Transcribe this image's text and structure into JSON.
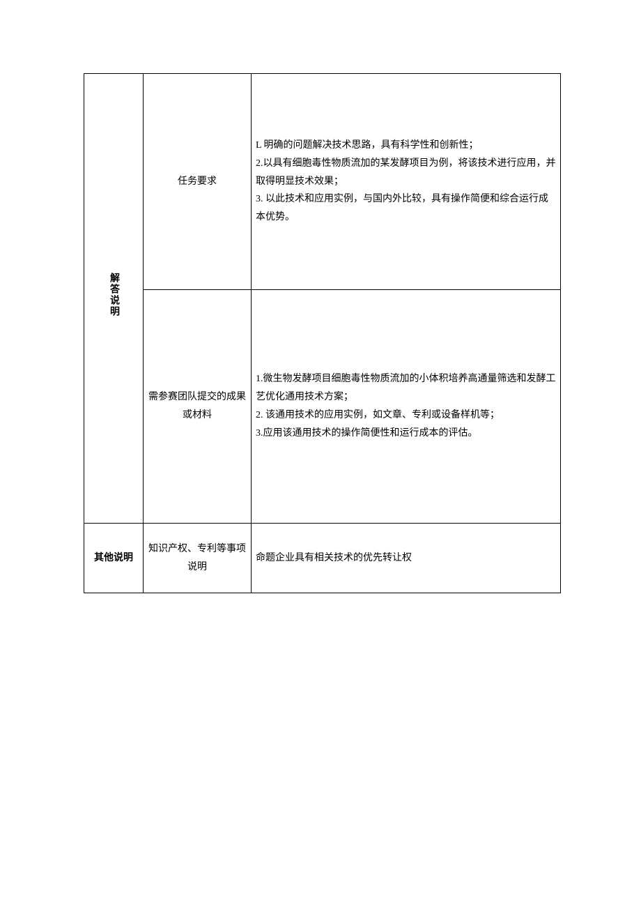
{
  "table": {
    "rows": [
      {
        "section": "解答说明",
        "label": "任务要求",
        "content": "L 明确的问题解决技术思路，具有科学性和创新性；\n2.以具有细胞毒性物质流加的某发酵项目为例，将该技术进行应用，并取得明显技术效果；\n3. 以此技术和应用实例，与国内外比较，具有操作简便和综合运行成本优势。"
      },
      {
        "label": "需参赛团队提交的成果或材料",
        "content": "1.微生物发酵项目细胞毒性物质流加的小体积培养高通量筛选和发酵工艺优化通用技术方案；\n2. 该通用技术的应用实例，如文章、专利或设备样机等；\n3.应用该通用技术的操作简便性和运行成本的评估。"
      },
      {
        "section": "其他说明",
        "label": "知识产权、专利等事项说明",
        "content": "命题企业具有相关技术的优先转让权"
      }
    ]
  }
}
